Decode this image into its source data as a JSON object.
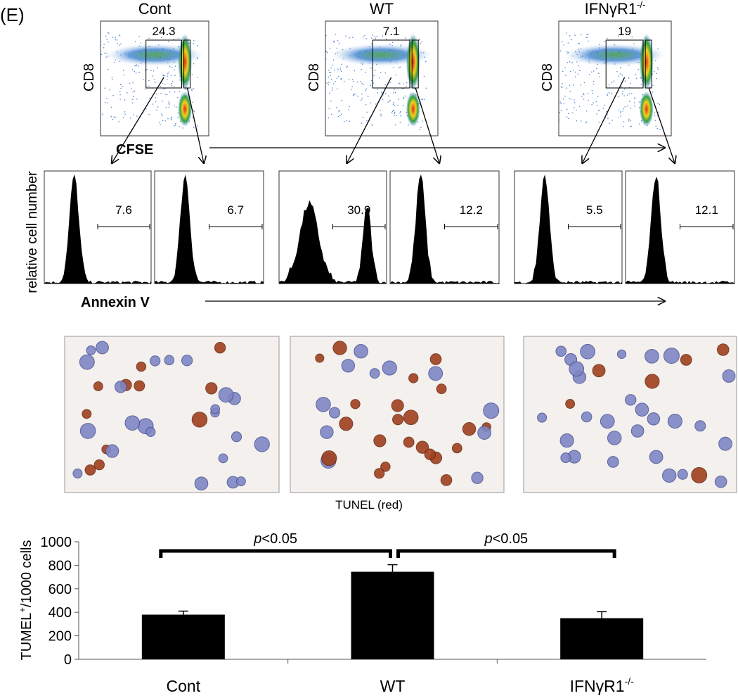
{
  "panel_label": "(E)",
  "flow": {
    "y_label": "CD8",
    "x_label": "CFSE",
    "hist_y_label": "relative cell number",
    "hist_x_label": "Annexin V",
    "groups": [
      {
        "title": "Cont",
        "gate": "24.3",
        "hist": [
          "7.6",
          "6.7"
        ]
      },
      {
        "title": "WT",
        "gate": "7.1",
        "hist": [
          "30.9",
          "12.2"
        ]
      },
      {
        "title": "IFNγR1",
        "title_sup": "-/-",
        "gate": "19",
        "hist": [
          "5.5",
          "12.1"
        ]
      }
    ]
  },
  "micrograph_caption": "TUNEL (red)",
  "chart_data": {
    "type": "bar",
    "y_label": {
      "text": "TUMEL",
      "sup": "+",
      "rest": "/1000 cells"
    },
    "categories": [
      "Cont",
      "WT",
      "IFNγR1"
    ],
    "category_superscripts": [
      null,
      null,
      "-/-"
    ],
    "values": [
      380,
      745,
      350
    ],
    "errors": [
      30,
      60,
      55
    ],
    "color": "#000000",
    "ylim": [
      0,
      1000
    ],
    "yticks": [
      0,
      200,
      400,
      600,
      800,
      1000
    ],
    "annotations": [
      {
        "italic": "p",
        "text": "<0.05"
      },
      {
        "italic": "p",
        "text": "<0.05"
      }
    ]
  }
}
